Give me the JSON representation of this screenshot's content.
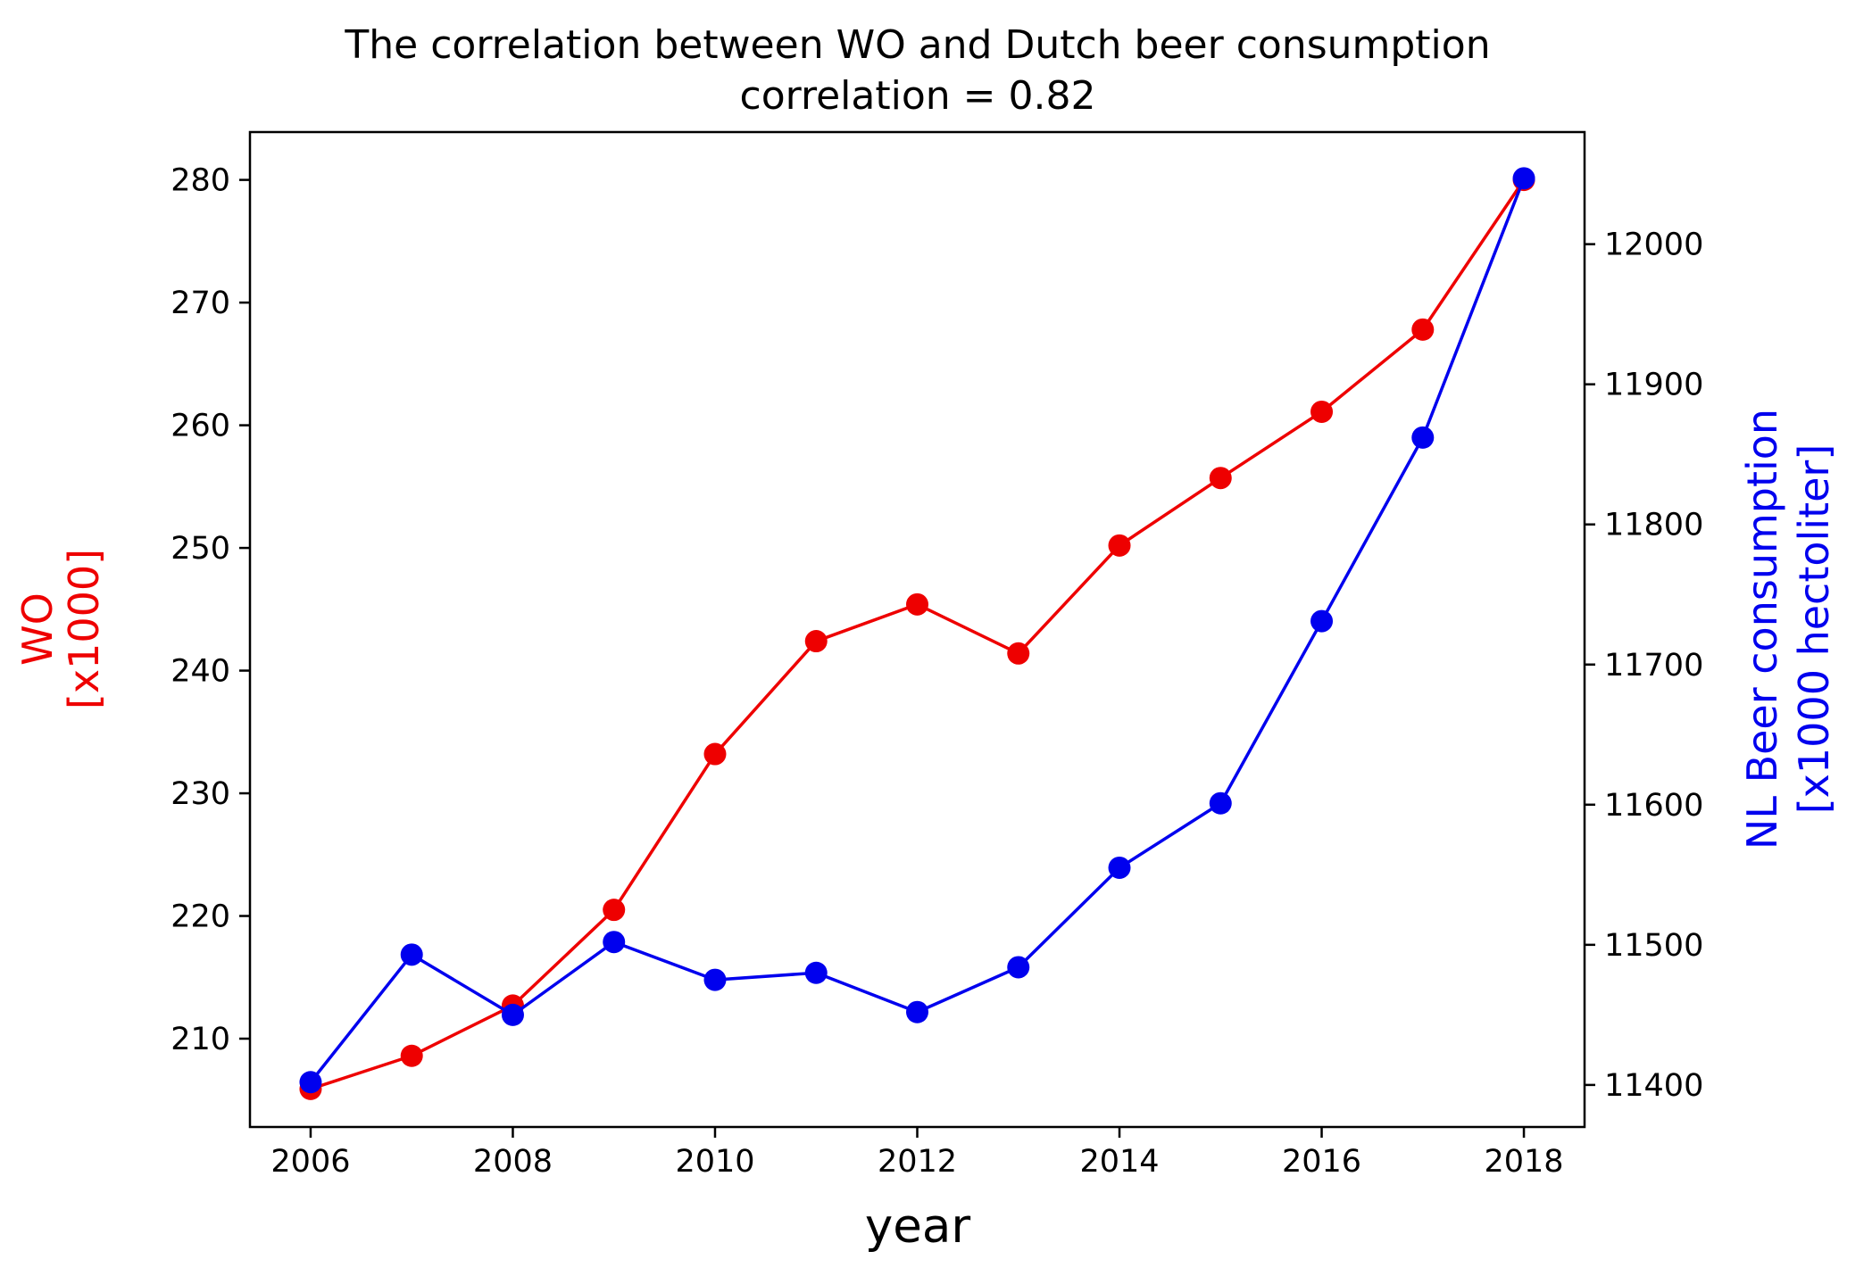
{
  "chart_data": {
    "type": "line",
    "title": "The correlation between WO and Dutch beer consumption",
    "subtitle": "correlation = 0.82",
    "xlabel": "year",
    "x": [
      2006,
      2007,
      2008,
      2009,
      2010,
      2011,
      2012,
      2013,
      2014,
      2015,
      2016,
      2017,
      2018
    ],
    "x_ticks": [
      "2006",
      "2008",
      "2010",
      "2012",
      "2014",
      "2016",
      "2018"
    ],
    "xlim": [
      2005.4,
      2018.6
    ],
    "left_axis": {
      "label_line1": "WO",
      "label_line2": "[x1000]",
      "color": "#ee0000",
      "ylim": [
        202.8,
        283.9
      ],
      "ticks": [
        "210",
        "220",
        "230",
        "240",
        "250",
        "260",
        "270",
        "280"
      ]
    },
    "right_axis": {
      "label_line1": "NL Beer consumption",
      "label_line2": "[x1000 hectoliter]",
      "color": "#0000ee",
      "ylim": [
        11370,
        12080
      ],
      "ticks": [
        "11400",
        "11500",
        "11600",
        "11700",
        "11800",
        "11900",
        "12000"
      ]
    },
    "series": [
      {
        "name": "WO",
        "axis": "left",
        "color": "#ee0000",
        "values": [
          205.9,
          208.6,
          212.7,
          220.5,
          233.2,
          242.4,
          245.4,
          241.4,
          250.2,
          255.7,
          261.1,
          267.8,
          280.0
        ]
      },
      {
        "name": "NL Beer consumption",
        "axis": "right",
        "color": "#0000ee",
        "values": [
          11402,
          11493,
          11450,
          11502,
          11475,
          11480,
          11452,
          11484,
          11555,
          11601,
          11731,
          11862,
          12047
        ]
      }
    ]
  }
}
